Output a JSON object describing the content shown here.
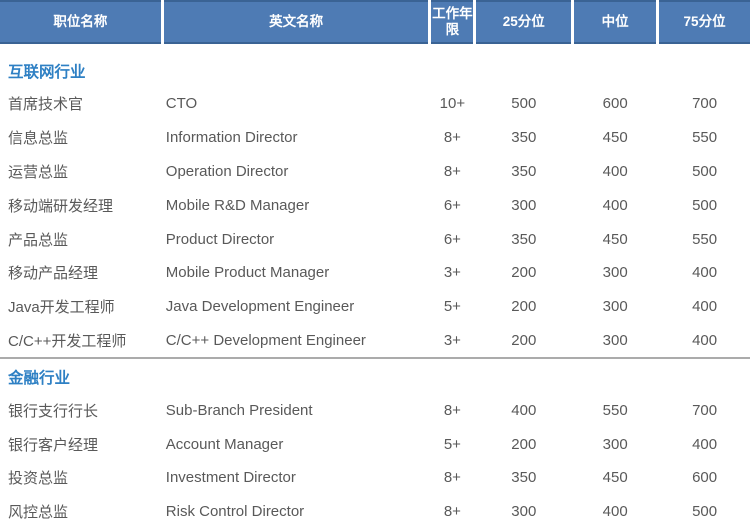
{
  "table": {
    "headers": [
      "职位名称",
      "英文名称",
      "工作年限",
      "25分位",
      "中位",
      "75分位"
    ],
    "sections": [
      {
        "title": "互联网行业",
        "rows": [
          [
            "首席技术官",
            "CTO",
            "10+",
            "500",
            "600",
            "700"
          ],
          [
            "信息总监",
            "Information Director",
            "8+",
            "350",
            "450",
            "550"
          ],
          [
            "运营总监",
            "Operation Director",
            "8+",
            "350",
            "400",
            "500"
          ],
          [
            "移动端研发经理",
            "Mobile R&D Manager",
            "6+",
            "300",
            "400",
            "500"
          ],
          [
            "产品总监",
            "Product Director",
            "6+",
            "350",
            "450",
            "550"
          ],
          [
            "移动产品经理",
            "Mobile Product Manager",
            "3+",
            "200",
            "300",
            "400"
          ],
          [
            "Java开发工程师",
            "Java Development Engineer",
            "5+",
            "200",
            "300",
            "400"
          ],
          [
            "C/C++开发工程师",
            "C/C++ Development Engineer",
            "3+",
            "200",
            "300",
            "400"
          ]
        ]
      },
      {
        "title": "金融行业",
        "rows": [
          [
            "银行支行行长",
            "Sub-Branch President",
            "8+",
            "400",
            "550",
            "700"
          ],
          [
            "银行客户经理",
            "Account Manager",
            "5+",
            "200",
            "300",
            "400"
          ],
          [
            "投资总监",
            "Investment Director",
            "8+",
            "350",
            "450",
            "600"
          ],
          [
            "风控总监",
            "Risk Control Director",
            "8+",
            "300",
            "400",
            "500"
          ]
        ]
      }
    ]
  },
  "colors": {
    "header_fill": "#4e7bb4",
    "header_border": "#3a6394",
    "header_text": "#ffffff",
    "section_title": "#2e80c4",
    "body_text": "#595959",
    "divider": "#ababab"
  }
}
